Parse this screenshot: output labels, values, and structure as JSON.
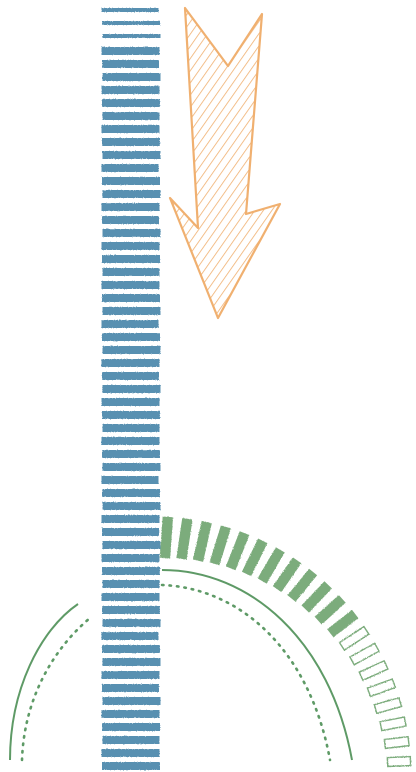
{
  "artwork": {
    "stripes_color": "#4a87aa",
    "arrow_color": "#f0b070",
    "arc_color": "#5e9a66",
    "ticks_color": "#6fa36f",
    "icons": [
      "striped-column",
      "hatched-down-arrow",
      "dotted-arc",
      "radial-tick-marks"
    ]
  }
}
